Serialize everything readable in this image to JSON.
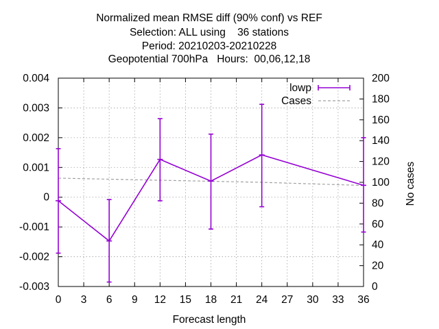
{
  "chart_data": {
    "type": "line",
    "title_lines": [
      "Normalized mean RMSE diff (90% conf) vs REF",
      "Selection: ALL using    36 stations",
      "Period: 20210203-20210228",
      "Geopotential 700hPa   Hours:  00,06,12,18"
    ],
    "xlabel": "Forecast length",
    "ylabel": "",
    "y2label": "No cases",
    "xlim": [
      0,
      36
    ],
    "ylim": [
      -0.003,
      0.004
    ],
    "y2lim": [
      0,
      200
    ],
    "xticks": [
      0,
      3,
      6,
      9,
      12,
      15,
      18,
      21,
      24,
      27,
      30,
      33,
      36
    ],
    "xtick_labels": [
      "0",
      "3",
      "6",
      "9",
      "12",
      "15",
      "18",
      "21",
      "24",
      "27",
      "30",
      "33",
      "36"
    ],
    "yticks": [
      -0.003,
      -0.002,
      -0.001,
      0,
      0.001,
      0.002,
      0.003,
      0.004
    ],
    "ytick_labels": [
      "-0.003",
      "-0.002",
      "-0.001",
      "0",
      "0.001",
      "0.002",
      "0.003",
      "0.004"
    ],
    "y2ticks": [
      0,
      20,
      40,
      60,
      80,
      100,
      120,
      140,
      160,
      180,
      200
    ],
    "y2tick_labels": [
      "0",
      "20",
      "40",
      "60",
      "80",
      "100",
      "120",
      "140",
      "160",
      "180",
      "200"
    ],
    "grid": true,
    "legend_position": "top-right",
    "series": [
      {
        "name": "lowp",
        "color": "#9400d3",
        "x": [
          0,
          6,
          12,
          18,
          24,
          36
        ],
        "y": [
          -0.00012,
          -0.00147,
          0.00127,
          0.00054,
          0.00142,
          0.0004
        ],
        "err_low": [
          -0.00188,
          -0.00285,
          -0.00012,
          -0.00107,
          -0.00032,
          -0.00117
        ],
        "err_high": [
          0.00163,
          -8e-05,
          0.00264,
          0.00212,
          0.00312,
          0.002
        ]
      },
      {
        "name": "Cases",
        "color": "#a0a0a0",
        "axis": "y2",
        "style": "dashed",
        "x": [
          0,
          6,
          12,
          18,
          24,
          36
        ],
        "y": [
          104,
          103,
          102,
          101,
          100,
          97
        ]
      }
    ]
  }
}
